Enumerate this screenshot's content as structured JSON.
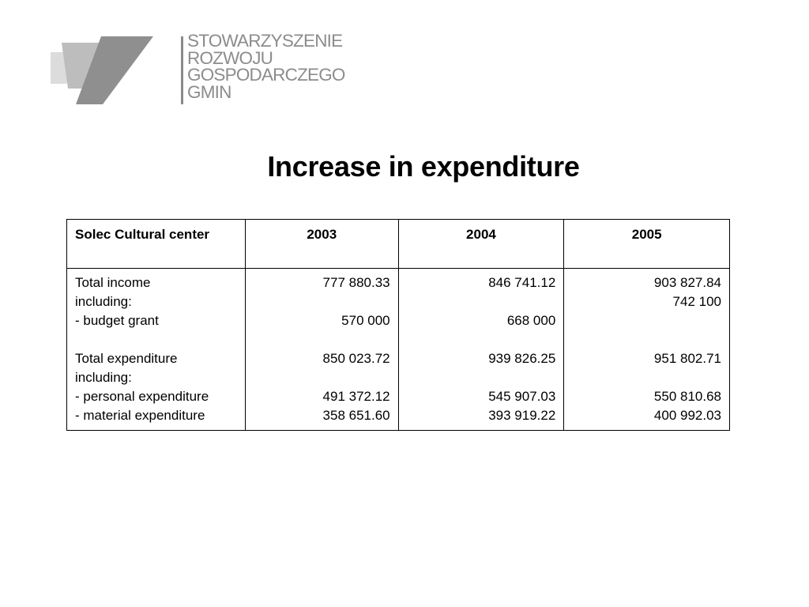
{
  "logo": {
    "lines": [
      "STOWARZYSZENIE",
      "ROZWOJU",
      "GOSPODARCZEGO",
      "GMIN"
    ]
  },
  "title": "Increase in expenditure",
  "table": {
    "headers": [
      "Solec Cultural center",
      "2003",
      "2004",
      "2005"
    ],
    "labels": [
      "Total income",
      "including:",
      "- budget grant",
      "",
      "Total expenditure",
      "including:",
      "- personal expenditure",
      "- material expenditure"
    ],
    "y2003": [
      "777 880.33",
      "",
      "570 000",
      "",
      "850 023.72",
      "",
      "491 372.12",
      "358 651.60"
    ],
    "y2004": [
      "846 741.12",
      "",
      "668 000",
      "",
      "939 826.25",
      "",
      "545 907.03",
      "393 919.22"
    ],
    "y2005": [
      "903 827.84",
      "742 100",
      "",
      "",
      "951 802.71",
      "",
      "550 810.68",
      "400 992.03"
    ]
  }
}
